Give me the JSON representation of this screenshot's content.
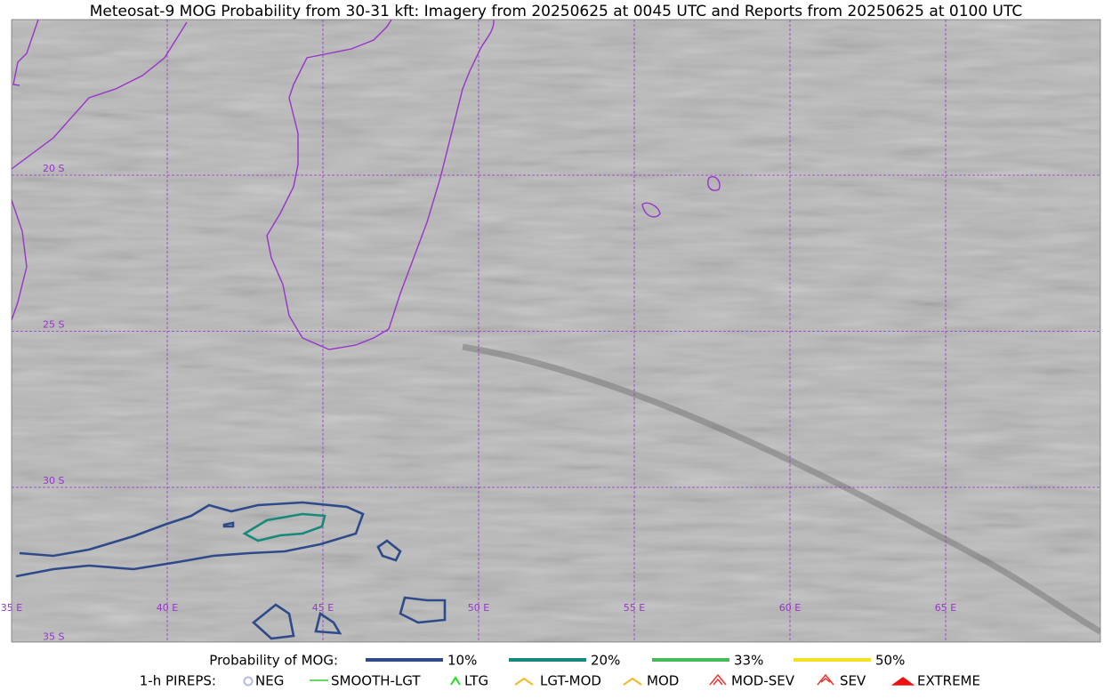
{
  "title": "Meteosat-9 MOG Probability from 30-31 kft: Imagery from 20250625 at 0045 UTC and Reports from 20250625 at 0100 UTC",
  "lon_labels": [
    "35 E",
    "40 E",
    "45 E",
    "50 E",
    "55 E",
    "60 E",
    "65 E"
  ],
  "lat_labels": [
    "20 S",
    "25 S",
    "30 S",
    "35 S"
  ],
  "probability_legend": {
    "title": "Probability of MOG:",
    "entries": [
      {
        "label": "10%",
        "color": "#2f4a8a"
      },
      {
        "label": "20%",
        "color": "#17897a"
      },
      {
        "label": "33%",
        "color": "#45bb55"
      },
      {
        "label": "50%",
        "color": "#f5e020"
      }
    ]
  },
  "pirep_legend": {
    "title": "1-h PIREPS:",
    "entries": [
      {
        "label": "NEG",
        "color": "#b8b8f0"
      },
      {
        "label": "SMOOTH-LGT",
        "color": "#33cc33"
      },
      {
        "label": "LTG",
        "color": "#22dd22"
      },
      {
        "label": "LGT-MOD",
        "color": "#f5b820"
      },
      {
        "label": "MOD",
        "color": "#f5b820"
      },
      {
        "label": "MOD-SEV",
        "color": "#ee3333"
      },
      {
        "label": "SEV",
        "color": "#ee3333"
      },
      {
        "label": "EXTREME",
        "color": "#ee1111"
      }
    ]
  }
}
